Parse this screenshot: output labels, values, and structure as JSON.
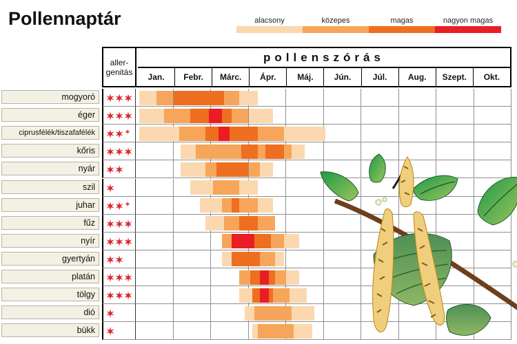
{
  "title": "Pollennaptár",
  "legend": {
    "items": [
      {
        "label": "alacsony",
        "level": "low",
        "color": "#FBD8AF"
      },
      {
        "label": "közepes",
        "level": "med",
        "color": "#F7A55A"
      },
      {
        "label": "magas",
        "level": "high",
        "color": "#EE6F1F"
      },
      {
        "label": "nagyon magas",
        "level": "vhigh",
        "color": "#EA1D25"
      }
    ]
  },
  "table": {
    "allergenicity_line1": "aller-",
    "allergenicity_line2": "genitás",
    "spread_header": "pollenszórás",
    "months": [
      "Jan.",
      "Febr.",
      "Márc.",
      "Ápr.",
      "Máj.",
      "Jún.",
      "Júl.",
      "Aug.",
      "Szept.",
      "Okt."
    ]
  },
  "colors": {
    "star_red": "#D8272E",
    "label_bg": "#F2F1E3",
    "grid_line": "#8F8F8F",
    "level_colors": {
      "low": "#FBD8AF",
      "med": "#F7A55A",
      "high": "#EE6F1F",
      "vhigh": "#EA1D25"
    }
  },
  "illustration": {
    "name": "birch-branch-with-catkins-illustration"
  },
  "chart_data": {
    "type": "heatmap",
    "title": "Pollennaptár",
    "x_unit": "months, Jan.–Okt., segment positions in month units (0 = start of Jan., 10 = end of Okt.)",
    "levels": [
      "alacsony",
      "közepes",
      "magas",
      "nagyon magas"
    ],
    "categories": [
      "mogyoró",
      "éger",
      "ciprusfélék/tiszafafélék",
      "kőris",
      "nyár",
      "szil",
      "juhar",
      "fűz",
      "nyír",
      "gyertyán",
      "platán",
      "tölgy",
      "dió",
      "bükk"
    ],
    "series": [
      {
        "plant": "mogyoró",
        "stars": 3,
        "half": false,
        "segments": [
          {
            "from": 0.1,
            "to": 0.55,
            "level": "low"
          },
          {
            "from": 0.55,
            "to": 1.0,
            "level": "med"
          },
          {
            "from": 1.0,
            "to": 2.35,
            "level": "high"
          },
          {
            "from": 2.35,
            "to": 2.75,
            "level": "med"
          },
          {
            "from": 2.75,
            "to": 3.25,
            "level": "low"
          }
        ]
      },
      {
        "plant": "éger",
        "stars": 3,
        "half": false,
        "segments": [
          {
            "from": 0.1,
            "to": 0.75,
            "level": "low"
          },
          {
            "from": 0.75,
            "to": 1.45,
            "level": "med"
          },
          {
            "from": 1.45,
            "to": 1.95,
            "level": "high"
          },
          {
            "from": 1.95,
            "to": 2.3,
            "level": "vhigh"
          },
          {
            "from": 2.3,
            "to": 2.55,
            "level": "high"
          },
          {
            "from": 2.55,
            "to": 3.0,
            "level": "med"
          },
          {
            "from": 3.0,
            "to": 3.65,
            "level": "low"
          }
        ]
      },
      {
        "plant": "ciprusfélék/tiszafafélék",
        "stars": 2,
        "half": true,
        "segments": [
          {
            "from": 0.1,
            "to": 1.15,
            "level": "low"
          },
          {
            "from": 1.15,
            "to": 1.85,
            "level": "med"
          },
          {
            "from": 1.85,
            "to": 2.2,
            "level": "high"
          },
          {
            "from": 2.2,
            "to": 2.5,
            "level": "vhigh"
          },
          {
            "from": 2.5,
            "to": 3.25,
            "level": "high"
          },
          {
            "from": 3.25,
            "to": 3.95,
            "level": "med"
          },
          {
            "from": 3.95,
            "to": 5.05,
            "level": "low"
          }
        ]
      },
      {
        "plant": "kőris",
        "stars": 3,
        "half": false,
        "segments": [
          {
            "from": 1.2,
            "to": 1.6,
            "level": "low"
          },
          {
            "from": 1.6,
            "to": 2.8,
            "level": "med"
          },
          {
            "from": 2.8,
            "to": 3.25,
            "level": "high"
          },
          {
            "from": 3.25,
            "to": 3.45,
            "level": "med"
          },
          {
            "from": 3.45,
            "to": 3.95,
            "level": "high"
          },
          {
            "from": 3.95,
            "to": 4.15,
            "level": "med"
          },
          {
            "from": 4.15,
            "to": 4.5,
            "level": "low"
          }
        ]
      },
      {
        "plant": "nyár",
        "stars": 2,
        "half": false,
        "segments": [
          {
            "from": 1.2,
            "to": 1.85,
            "level": "low"
          },
          {
            "from": 1.85,
            "to": 2.15,
            "level": "med"
          },
          {
            "from": 2.15,
            "to": 3.0,
            "level": "high"
          },
          {
            "from": 3.0,
            "to": 3.3,
            "level": "med"
          },
          {
            "from": 3.3,
            "to": 3.65,
            "level": "low"
          }
        ]
      },
      {
        "plant": "szil",
        "stars": 1,
        "half": false,
        "segments": [
          {
            "from": 1.45,
            "to": 2.05,
            "level": "low"
          },
          {
            "from": 2.05,
            "to": 2.75,
            "level": "med"
          },
          {
            "from": 2.75,
            "to": 3.25,
            "level": "low"
          }
        ]
      },
      {
        "plant": "juhar",
        "stars": 2,
        "half": true,
        "segments": [
          {
            "from": 1.7,
            "to": 2.3,
            "level": "low"
          },
          {
            "from": 2.3,
            "to": 2.55,
            "level": "med"
          },
          {
            "from": 2.55,
            "to": 2.75,
            "level": "high"
          },
          {
            "from": 2.75,
            "to": 3.25,
            "level": "med"
          },
          {
            "from": 3.25,
            "to": 3.65,
            "level": "low"
          }
        ]
      },
      {
        "plant": "fűz",
        "stars": 3,
        "half": false,
        "segments": [
          {
            "from": 1.85,
            "to": 2.35,
            "level": "low"
          },
          {
            "from": 2.35,
            "to": 2.75,
            "level": "med"
          },
          {
            "from": 2.75,
            "to": 3.25,
            "level": "high"
          },
          {
            "from": 3.25,
            "to": 3.7,
            "level": "med"
          }
        ]
      },
      {
        "plant": "nyír",
        "stars": 3,
        "half": false,
        "segments": [
          {
            "from": 2.3,
            "to": 2.55,
            "level": "med"
          },
          {
            "from": 2.55,
            "to": 3.15,
            "level": "vhigh"
          },
          {
            "from": 3.15,
            "to": 3.6,
            "level": "high"
          },
          {
            "from": 3.6,
            "to": 3.95,
            "level": "med"
          },
          {
            "from": 3.95,
            "to": 4.35,
            "level": "low"
          }
        ]
      },
      {
        "plant": "gyertyán",
        "stars": 2,
        "half": false,
        "segments": [
          {
            "from": 2.3,
            "to": 2.55,
            "level": "low"
          },
          {
            "from": 2.55,
            "to": 3.3,
            "level": "high"
          },
          {
            "from": 3.3,
            "to": 3.7,
            "level": "med"
          },
          {
            "from": 3.7,
            "to": 3.95,
            "level": "low"
          }
        ]
      },
      {
        "plant": "platán",
        "stars": 3,
        "half": false,
        "segments": [
          {
            "from": 2.75,
            "to": 3.05,
            "level": "med"
          },
          {
            "from": 3.05,
            "to": 3.3,
            "level": "high"
          },
          {
            "from": 3.3,
            "to": 3.55,
            "level": "vhigh"
          },
          {
            "from": 3.55,
            "to": 3.7,
            "level": "high"
          },
          {
            "from": 3.7,
            "to": 4.0,
            "level": "med"
          },
          {
            "from": 4.0,
            "to": 4.35,
            "level": "low"
          }
        ]
      },
      {
        "plant": "tölgy",
        "stars": 3,
        "half": false,
        "segments": [
          {
            "from": 2.75,
            "to": 3.1,
            "level": "low"
          },
          {
            "from": 3.1,
            "to": 3.3,
            "level": "high"
          },
          {
            "from": 3.3,
            "to": 3.55,
            "level": "vhigh"
          },
          {
            "from": 3.55,
            "to": 3.65,
            "level": "high"
          },
          {
            "from": 3.65,
            "to": 4.1,
            "level": "med"
          },
          {
            "from": 4.1,
            "to": 4.55,
            "level": "low"
          }
        ]
      },
      {
        "plant": "dió",
        "stars": 1,
        "half": false,
        "segments": [
          {
            "from": 2.9,
            "to": 3.15,
            "level": "low"
          },
          {
            "from": 3.15,
            "to": 4.15,
            "level": "med"
          },
          {
            "from": 4.15,
            "to": 4.75,
            "level": "low"
          }
        ]
      },
      {
        "plant": "bükk",
        "stars": 1,
        "half": false,
        "segments": [
          {
            "from": 3.1,
            "to": 3.25,
            "level": "low"
          },
          {
            "from": 3.25,
            "to": 4.2,
            "level": "med"
          },
          {
            "from": 4.2,
            "to": 4.7,
            "level": "low"
          }
        ]
      }
    ]
  }
}
